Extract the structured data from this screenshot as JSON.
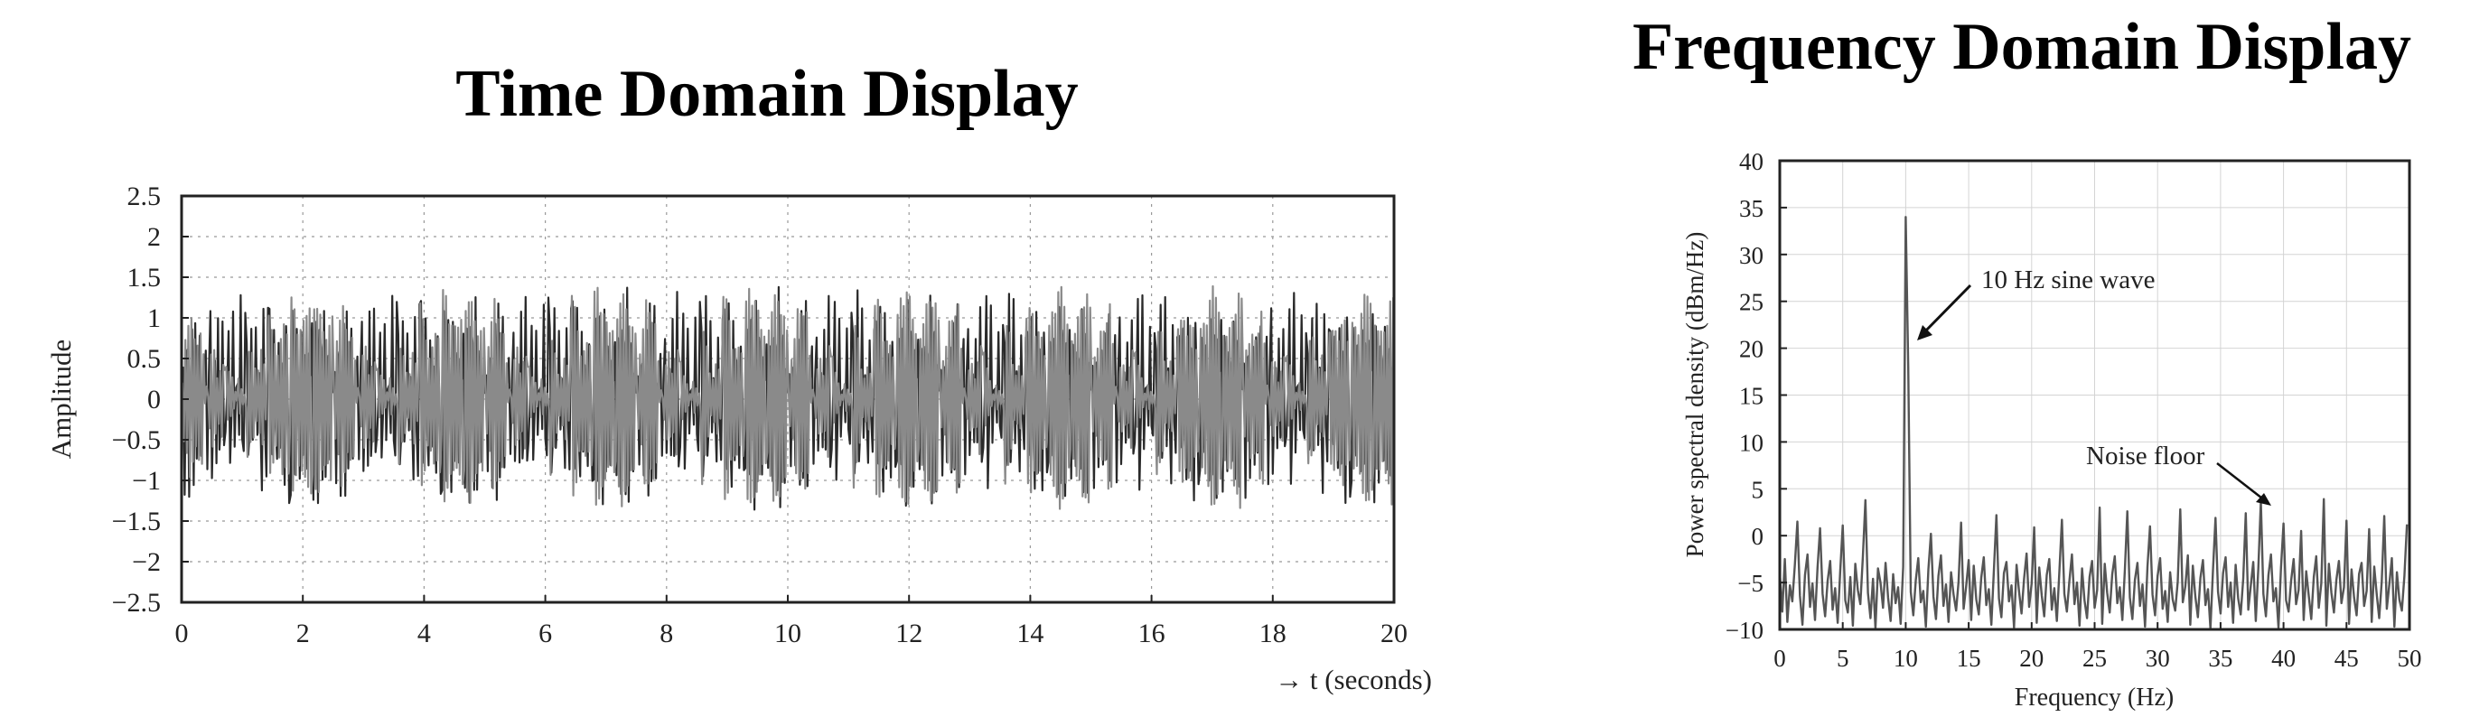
{
  "chart_data": [
    {
      "type": "line",
      "title": "Time Domain Display",
      "ylabel": "Amplitude",
      "xlabel": "→ t (seconds)",
      "xlim": [
        0,
        20
      ],
      "ylim": [
        -2.5,
        2.5
      ],
      "xticks": [
        "0",
        "2",
        "4",
        "6",
        "8",
        "10",
        "12",
        "14",
        "16",
        "18",
        "20"
      ],
      "yticks": [
        "2.5",
        "2",
        "1.5",
        "1",
        "0.5",
        "0",
        "−0.5",
        "−1",
        "−1.5",
        "−2",
        "−2.5"
      ],
      "grid": "dotted",
      "series": [
        {
          "color": "#2a2a2a",
          "x_step": 0.025,
          "values": [
            0.12,
            0.88,
            1.05,
            -0.62,
            -1.18,
            0.31,
            1.22,
            0.44,
            -0.95,
            -1.31,
            0.08,
            1.1,
            0.79,
            -0.4,
            -1.25,
            -0.55,
            0.97,
            1.27,
            -0.13,
            -1.05,
            -0.87,
            0.52,
            1.34,
            0.28,
            -1.12,
            -1.02,
            0.36,
            1.18,
            0.61,
            -0.78,
            -1.29,
            -0.21,
            1.02,
            1.15,
            -0.47,
            -1.21,
            -0.33,
            0.89,
            1.31,
            0.05,
            -0.99,
            -1.14,
            0.24,
            1.26,
            0.7,
            -0.66,
            -1.36,
            -0.09,
            1.08,
            0.94,
            -0.58,
            -1.17,
            0.15,
            1.23,
            0.48,
            -0.91,
            -1.24,
            0.39,
            1.39,
            0.19,
            -1.07,
            -0.82,
            0.63,
            1.19,
            -0.27,
            -1.33,
            -0.44,
            0.85,
            1.09,
            -0.16,
            -1.01,
            -1.19,
            0.33,
            1.29,
            0.57,
            -0.73,
            -1.28,
            0.02,
            1.13,
            0.83,
            -0.51,
            -1.22,
            -0.3,
            1.01,
            1.21,
            -0.37,
            -1.16,
            -0.7,
            0.74,
            1.32,
            0.11,
            -1.09,
            -0.96,
            0.45,
            1.25,
            0.35,
            -0.84,
            -1.3,
            0.21,
            1.17
          ]
        },
        {
          "color": "#8a8a8a",
          "x_step": 0.025,
          "values": [
            -0.44,
            0.69,
            1.28,
            0.21,
            -1.09,
            -0.93,
            0.58,
            1.35,
            -0.06,
            -1.23,
            -0.52,
            0.91,
            1.11,
            -0.34,
            -1.3,
            0.17,
            1.24,
            0.73,
            -0.81,
            -1.14,
            0.42,
            1.38,
            0.03,
            -1.2,
            -0.68,
            0.83,
            1.2,
            -0.24,
            -1.27,
            -0.36,
            1.06,
            0.97,
            -0.64,
            -1.32,
            0.29,
            1.16,
            0.55,
            -0.88,
            -1.1,
            0.47,
            1.3,
            -0.12,
            -1.26,
            -0.6,
            0.78,
            1.24,
            -0.31,
            -1.18,
            0.09,
            1.33,
            0.65,
            -0.97,
            -1.04,
            0.38,
            1.21,
            -0.02,
            -1.35,
            -0.49,
            0.92,
            1.07,
            -0.43,
            -1.25,
            0.26,
            1.4,
            0.32,
            -1.06,
            -0.89,
            0.61,
            1.14,
            -0.19,
            -1.29,
            -0.41,
            0.99,
            1.03,
            -0.56,
            -1.21,
            0.14,
            1.27,
            0.5,
            -0.86,
            -1.15,
            0.44,
            1.31,
            -0.08,
            -1.24,
            -0.71,
            0.8,
            1.18,
            -0.27,
            -1.34,
            0.07,
            1.2,
            0.66,
            -0.92,
            -1.08,
            0.4,
            1.26,
            -0.15,
            -1.19,
            0.55
          ]
        }
      ]
    },
    {
      "type": "line",
      "title": "Frequency Domain Display",
      "ylabel": "Power spectral density (dBm/Hz)",
      "xlabel": "Frequency (Hz)",
      "xlim": [
        0,
        50
      ],
      "ylim": [
        -10,
        40
      ],
      "xticks": [
        "0",
        "5",
        "10",
        "15",
        "20",
        "25",
        "30",
        "35",
        "40",
        "45",
        "50"
      ],
      "yticks": [
        "40",
        "35",
        "30",
        "25",
        "20",
        "15",
        "10",
        "5",
        "0",
        "−5",
        "−10"
      ],
      "grid": "solid-light",
      "annotations": [
        {
          "text": "10 Hz sine wave",
          "x": 10,
          "y": 21
        },
        {
          "text": "Noise floor",
          "x": 38.7,
          "y": 3.5
        }
      ],
      "series": [
        {
          "color": "#555555",
          "x_step": 0.2,
          "values": [
            -4.0,
            -8.1,
            -2.5,
            -9.2,
            -5.3,
            -7.0,
            -3.1,
            1.5,
            -6.4,
            -9.5,
            -4.2,
            -2.0,
            -7.6,
            -5.1,
            -9.0,
            -3.4,
            0.8,
            -6.2,
            -8.6,
            -4.8,
            -2.7,
            -7.9,
            -5.6,
            -9.3,
            -3.8,
            1.1,
            -6.9,
            -8.2,
            -4.4,
            -9.6,
            -3.0,
            -5.8,
            -7.3,
            -2.2,
            3.8,
            -6.1,
            -8.8,
            -4.6,
            -9.9,
            -3.5,
            -5.0,
            -7.7,
            -2.9,
            -6.6,
            -9.1,
            -4.1,
            -7.2,
            -5.5,
            -9.4,
            -3.3,
            34.0,
            18.0,
            -6.0,
            -8.5,
            -4.7,
            -2.4,
            -7.1,
            -5.9,
            -9.7,
            -3.6,
            0.2,
            -6.5,
            -8.9,
            -4.3,
            -2.1,
            -7.5,
            -5.2,
            -9.2,
            -3.9,
            -6.3,
            -8.0,
            -4.9,
            1.4,
            -7.8,
            -5.4,
            -2.6,
            -9.0,
            -3.2,
            -6.8,
            -8.4,
            -4.5,
            -2.3,
            -7.4,
            -5.7,
            -9.5,
            -3.7,
            2.2,
            -6.7,
            -8.7,
            -4.0,
            -2.8,
            -7.0,
            -5.3,
            -9.8,
            -3.1,
            -6.0,
            -8.3,
            -4.6,
            -1.9,
            -7.6,
            -5.1,
            0.9,
            -9.3,
            -3.4,
            -6.4,
            -8.6,
            -4.2,
            -2.5,
            -7.9,
            -5.6,
            -9.1,
            -3.8,
            1.7,
            -6.2,
            -8.1,
            -4.8,
            -2.0,
            -7.3,
            -5.0,
            -9.6,
            -3.5,
            -6.9,
            -8.8,
            -4.4,
            -2.7,
            -7.7,
            -5.8,
            3.0,
            -9.4,
            -3.0,
            -6.1,
            -8.2,
            -4.1,
            -2.2,
            -7.2,
            -5.5,
            -9.0,
            -3.6,
            2.6,
            -6.6,
            -8.9,
            -4.7,
            -2.9,
            -7.5,
            -5.2,
            -9.7,
            -3.3,
            1.0,
            -6.3,
            -8.5,
            -4.3,
            -2.4,
            -7.8,
            -5.9,
            -9.2,
            -3.9,
            -6.8,
            -8.0,
            -4.9,
            2.8,
            -7.1,
            -5.4,
            -2.1,
            -9.5,
            -3.2,
            -6.5,
            -8.7,
            -4.5,
            -2.6,
            -7.4,
            -5.7,
            -9.9,
            -3.7,
            1.9,
            -6.0,
            -8.3,
            -4.0,
            -2.3,
            -7.6,
            -5.0,
            -9.3,
            -3.1,
            -6.7,
            -8.4,
            -4.6,
            2.4,
            -7.9,
            -5.3,
            -2.8,
            -9.1,
            -3.5,
            3.7,
            -6.2,
            -8.6,
            -4.2,
            -2.0,
            -7.0,
            -5.6,
            -9.8,
            -3.4,
            1.3,
            -6.9,
            -8.1,
            -4.8,
            -2.5,
            -7.3,
            -5.8,
            0.5,
            -9.0,
            -3.8,
            -6.4,
            -8.9,
            -4.4,
            -2.2,
            -7.7,
            -5.1,
            3.9,
            -9.6,
            -3.0,
            -6.1,
            -8.2,
            -4.7,
            -2.7,
            -7.2,
            -5.5,
            1.6,
            -9.4,
            -3.6,
            -6.6,
            -8.5,
            -4.1,
            -2.9,
            -7.5,
            -5.9,
            0.7,
            -9.2,
            -3.3,
            -6.3,
            -8.8,
            -4.9,
            2.1,
            -7.8,
            -5.2,
            -2.4,
            -9.7,
            -3.9,
            -6.8,
            -8.0,
            -4.3,
            1.2
          ]
        }
      ]
    }
  ]
}
